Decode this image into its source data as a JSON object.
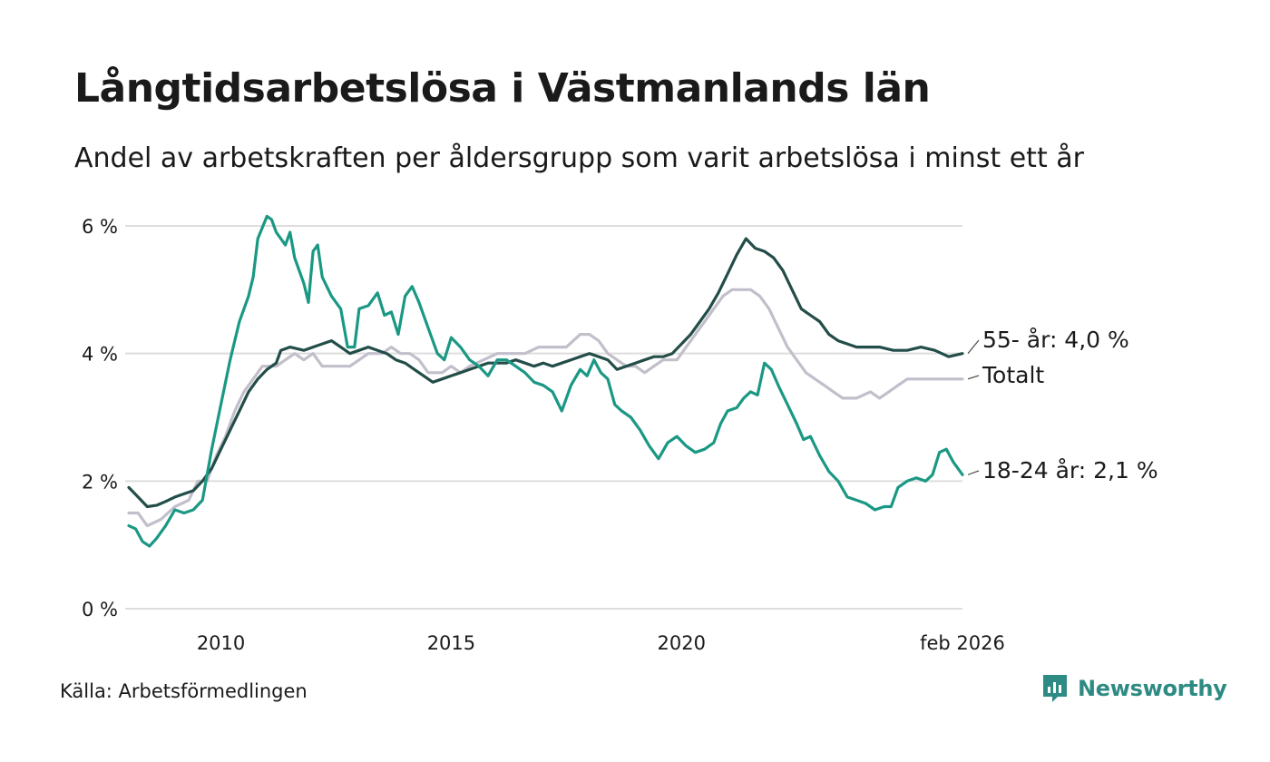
{
  "header": {
    "title": "Långtidsarbetslösa i Västmanlands län",
    "subtitle": "Andel av arbetskraften per åldersgrupp som varit arbetslösa i minst ett år"
  },
  "footer": {
    "source": "Källa: Arbetsförmedlingen",
    "brand": "Newsworthy"
  },
  "colors": {
    "age55": "#234d48",
    "total": "#c2bfcb",
    "age18_24": "#1a9884",
    "grid": "#dddddd",
    "brand": "#2e8b83"
  },
  "chart_data": {
    "type": "line",
    "title": "Långtidsarbetslösa i Västmanlands län",
    "subtitle": "Andel av arbetskraften per åldersgrupp som varit arbetslösa i minst ett år",
    "x_unit": "year",
    "xlim": [
      2008.0,
      2026.1
    ],
    "ylim": [
      0,
      6
    ],
    "y_ticks": [
      {
        "value": 0,
        "label": "0 %"
      },
      {
        "value": 2,
        "label": "2 %"
      },
      {
        "value": 4,
        "label": "4 %"
      },
      {
        "value": 6,
        "label": "6 %"
      }
    ],
    "x_ticks": [
      {
        "value": 2010,
        "label": "2010"
      },
      {
        "value": 2015,
        "label": "2015"
      },
      {
        "value": 2020,
        "label": "2020"
      },
      {
        "value": 2026.1,
        "label": "feb 2026"
      }
    ],
    "grid": true,
    "series": [
      {
        "name": "Totalt",
        "end_label": "Totalt",
        "color_key": "total",
        "points": [
          [
            2008.0,
            1.5
          ],
          [
            2008.2,
            1.5
          ],
          [
            2008.4,
            1.3
          ],
          [
            2008.7,
            1.4
          ],
          [
            2009.0,
            1.6
          ],
          [
            2009.3,
            1.7
          ],
          [
            2009.5,
            2.0
          ],
          [
            2009.7,
            2.0
          ],
          [
            2009.9,
            2.4
          ],
          [
            2010.1,
            2.7
          ],
          [
            2010.3,
            3.1
          ],
          [
            2010.5,
            3.4
          ],
          [
            2010.7,
            3.6
          ],
          [
            2010.9,
            3.8
          ],
          [
            2011.2,
            3.8
          ],
          [
            2011.4,
            3.9
          ],
          [
            2011.6,
            4.0
          ],
          [
            2011.8,
            3.9
          ],
          [
            2012.0,
            4.0
          ],
          [
            2012.2,
            3.8
          ],
          [
            2012.5,
            3.8
          ],
          [
            2012.8,
            3.8
          ],
          [
            2013.0,
            3.9
          ],
          [
            2013.2,
            4.0
          ],
          [
            2013.5,
            4.0
          ],
          [
            2013.7,
            4.1
          ],
          [
            2013.9,
            4.0
          ],
          [
            2014.1,
            4.0
          ],
          [
            2014.3,
            3.9
          ],
          [
            2014.5,
            3.7
          ],
          [
            2014.8,
            3.7
          ],
          [
            2015.0,
            3.8
          ],
          [
            2015.2,
            3.7
          ],
          [
            2015.4,
            3.8
          ],
          [
            2015.7,
            3.9
          ],
          [
            2016.0,
            4.0
          ],
          [
            2016.3,
            4.0
          ],
          [
            2016.6,
            4.0
          ],
          [
            2016.9,
            4.1
          ],
          [
            2017.2,
            4.1
          ],
          [
            2017.5,
            4.1
          ],
          [
            2017.8,
            4.3
          ],
          [
            2018.0,
            4.3
          ],
          [
            2018.2,
            4.2
          ],
          [
            2018.4,
            4.0
          ],
          [
            2018.6,
            3.9
          ],
          [
            2018.8,
            3.8
          ],
          [
            2019.0,
            3.8
          ],
          [
            2019.2,
            3.7
          ],
          [
            2019.4,
            3.8
          ],
          [
            2019.6,
            3.9
          ],
          [
            2019.9,
            3.9
          ],
          [
            2020.1,
            4.1
          ],
          [
            2020.3,
            4.3
          ],
          [
            2020.5,
            4.5
          ],
          [
            2020.7,
            4.7
          ],
          [
            2020.9,
            4.9
          ],
          [
            2021.1,
            5.0
          ],
          [
            2021.3,
            5.0
          ],
          [
            2021.5,
            5.0
          ],
          [
            2021.7,
            4.9
          ],
          [
            2021.9,
            4.7
          ],
          [
            2022.1,
            4.4
          ],
          [
            2022.3,
            4.1
          ],
          [
            2022.5,
            3.9
          ],
          [
            2022.7,
            3.7
          ],
          [
            2022.9,
            3.6
          ],
          [
            2023.1,
            3.5
          ],
          [
            2023.3,
            3.4
          ],
          [
            2023.5,
            3.3
          ],
          [
            2023.8,
            3.3
          ],
          [
            2024.1,
            3.4
          ],
          [
            2024.3,
            3.3
          ],
          [
            2024.5,
            3.4
          ],
          [
            2024.7,
            3.5
          ],
          [
            2024.9,
            3.6
          ],
          [
            2025.2,
            3.6
          ],
          [
            2025.5,
            3.6
          ],
          [
            2025.8,
            3.6
          ],
          [
            2026.1,
            3.6
          ]
        ]
      },
      {
        "name": "55- år",
        "end_label": "55- år: 4,0 %",
        "color_key": "age55",
        "points": [
          [
            2008.0,
            1.9
          ],
          [
            2008.2,
            1.75
          ],
          [
            2008.4,
            1.6
          ],
          [
            2008.6,
            1.62
          ],
          [
            2008.8,
            1.68
          ],
          [
            2009.0,
            1.75
          ],
          [
            2009.2,
            1.8
          ],
          [
            2009.4,
            1.85
          ],
          [
            2009.6,
            2.0
          ],
          [
            2009.8,
            2.2
          ],
          [
            2010.0,
            2.5
          ],
          [
            2010.2,
            2.8
          ],
          [
            2010.4,
            3.1
          ],
          [
            2010.6,
            3.4
          ],
          [
            2010.8,
            3.6
          ],
          [
            2011.0,
            3.75
          ],
          [
            2011.2,
            3.85
          ],
          [
            2011.3,
            4.05
          ],
          [
            2011.5,
            4.1
          ],
          [
            2011.8,
            4.05
          ],
          [
            2012.0,
            4.1
          ],
          [
            2012.2,
            4.15
          ],
          [
            2012.4,
            4.2
          ],
          [
            2012.6,
            4.1
          ],
          [
            2012.8,
            4.0
          ],
          [
            2013.0,
            4.05
          ],
          [
            2013.2,
            4.1
          ],
          [
            2013.4,
            4.05
          ],
          [
            2013.6,
            4.0
          ],
          [
            2013.8,
            3.9
          ],
          [
            2014.0,
            3.85
          ],
          [
            2014.2,
            3.75
          ],
          [
            2014.4,
            3.65
          ],
          [
            2014.6,
            3.55
          ],
          [
            2014.8,
            3.6
          ],
          [
            2015.0,
            3.65
          ],
          [
            2015.2,
            3.7
          ],
          [
            2015.4,
            3.75
          ],
          [
            2015.6,
            3.8
          ],
          [
            2015.8,
            3.85
          ],
          [
            2016.0,
            3.85
          ],
          [
            2016.2,
            3.85
          ],
          [
            2016.4,
            3.9
          ],
          [
            2016.6,
            3.85
          ],
          [
            2016.8,
            3.8
          ],
          [
            2017.0,
            3.85
          ],
          [
            2017.2,
            3.8
          ],
          [
            2017.4,
            3.85
          ],
          [
            2017.6,
            3.9
          ],
          [
            2017.8,
            3.95
          ],
          [
            2018.0,
            4.0
          ],
          [
            2018.2,
            3.95
          ],
          [
            2018.4,
            3.9
          ],
          [
            2018.6,
            3.75
          ],
          [
            2018.8,
            3.8
          ],
          [
            2019.0,
            3.85
          ],
          [
            2019.2,
            3.9
          ],
          [
            2019.4,
            3.95
          ],
          [
            2019.6,
            3.95
          ],
          [
            2019.8,
            4.0
          ],
          [
            2020.0,
            4.15
          ],
          [
            2020.2,
            4.3
          ],
          [
            2020.4,
            4.5
          ],
          [
            2020.6,
            4.7
          ],
          [
            2020.8,
            4.95
          ],
          [
            2021.0,
            5.25
          ],
          [
            2021.2,
            5.55
          ],
          [
            2021.4,
            5.8
          ],
          [
            2021.6,
            5.65
          ],
          [
            2021.8,
            5.6
          ],
          [
            2022.0,
            5.5
          ],
          [
            2022.2,
            5.3
          ],
          [
            2022.4,
            5.0
          ],
          [
            2022.6,
            4.7
          ],
          [
            2022.8,
            4.6
          ],
          [
            2023.0,
            4.5
          ],
          [
            2023.2,
            4.3
          ],
          [
            2023.4,
            4.2
          ],
          [
            2023.6,
            4.15
          ],
          [
            2023.8,
            4.1
          ],
          [
            2024.0,
            4.1
          ],
          [
            2024.3,
            4.1
          ],
          [
            2024.6,
            4.05
          ],
          [
            2024.9,
            4.05
          ],
          [
            2025.2,
            4.1
          ],
          [
            2025.5,
            4.05
          ],
          [
            2025.8,
            3.95
          ],
          [
            2026.1,
            4.0
          ]
        ]
      },
      {
        "name": "18-24 år",
        "end_label": "18-24 år: 2,1 %",
        "color_key": "age18_24",
        "points": [
          [
            2008.0,
            1.3
          ],
          [
            2008.15,
            1.25
          ],
          [
            2008.3,
            1.05
          ],
          [
            2008.45,
            0.98
          ],
          [
            2008.6,
            1.1
          ],
          [
            2008.8,
            1.3
          ],
          [
            2009.0,
            1.55
          ],
          [
            2009.2,
            1.5
          ],
          [
            2009.4,
            1.55
          ],
          [
            2009.6,
            1.7
          ],
          [
            2009.8,
            2.5
          ],
          [
            2010.0,
            3.2
          ],
          [
            2010.2,
            3.9
          ],
          [
            2010.4,
            4.5
          ],
          [
            2010.6,
            4.9
          ],
          [
            2010.7,
            5.2
          ],
          [
            2010.8,
            5.8
          ],
          [
            2011.0,
            6.15
          ],
          [
            2011.1,
            6.1
          ],
          [
            2011.2,
            5.9
          ],
          [
            2011.4,
            5.7
          ],
          [
            2011.5,
            5.9
          ],
          [
            2011.6,
            5.5
          ],
          [
            2011.8,
            5.1
          ],
          [
            2011.9,
            4.8
          ],
          [
            2012.0,
            5.6
          ],
          [
            2012.1,
            5.7
          ],
          [
            2012.2,
            5.2
          ],
          [
            2012.4,
            4.9
          ],
          [
            2012.6,
            4.7
          ],
          [
            2012.75,
            4.1
          ],
          [
            2012.9,
            4.1
          ],
          [
            2013.0,
            4.7
          ],
          [
            2013.2,
            4.75
          ],
          [
            2013.4,
            4.95
          ],
          [
            2013.55,
            4.6
          ],
          [
            2013.7,
            4.65
          ],
          [
            2013.85,
            4.3
          ],
          [
            2014.0,
            4.9
          ],
          [
            2014.15,
            5.05
          ],
          [
            2014.3,
            4.8
          ],
          [
            2014.5,
            4.4
          ],
          [
            2014.7,
            4.0
          ],
          [
            2014.85,
            3.9
          ],
          [
            2015.0,
            4.25
          ],
          [
            2015.2,
            4.1
          ],
          [
            2015.4,
            3.9
          ],
          [
            2015.6,
            3.8
          ],
          [
            2015.8,
            3.65
          ],
          [
            2016.0,
            3.9
          ],
          [
            2016.2,
            3.9
          ],
          [
            2016.4,
            3.8
          ],
          [
            2016.6,
            3.7
          ],
          [
            2016.8,
            3.55
          ],
          [
            2017.0,
            3.5
          ],
          [
            2017.2,
            3.4
          ],
          [
            2017.4,
            3.1
          ],
          [
            2017.6,
            3.5
          ],
          [
            2017.8,
            3.75
          ],
          [
            2017.95,
            3.65
          ],
          [
            2018.1,
            3.9
          ],
          [
            2018.25,
            3.7
          ],
          [
            2018.4,
            3.6
          ],
          [
            2018.55,
            3.2
          ],
          [
            2018.7,
            3.1
          ],
          [
            2018.9,
            3.0
          ],
          [
            2019.1,
            2.8
          ],
          [
            2019.3,
            2.55
          ],
          [
            2019.5,
            2.35
          ],
          [
            2019.7,
            2.6
          ],
          [
            2019.9,
            2.7
          ],
          [
            2020.1,
            2.55
          ],
          [
            2020.3,
            2.45
          ],
          [
            2020.5,
            2.5
          ],
          [
            2020.7,
            2.6
          ],
          [
            2020.85,
            2.9
          ],
          [
            2021.0,
            3.1
          ],
          [
            2021.2,
            3.15
          ],
          [
            2021.35,
            3.3
          ],
          [
            2021.5,
            3.4
          ],
          [
            2021.65,
            3.35
          ],
          [
            2021.8,
            3.85
          ],
          [
            2021.95,
            3.75
          ],
          [
            2022.1,
            3.5
          ],
          [
            2022.3,
            3.2
          ],
          [
            2022.5,
            2.9
          ],
          [
            2022.65,
            2.65
          ],
          [
            2022.8,
            2.7
          ],
          [
            2023.0,
            2.4
          ],
          [
            2023.2,
            2.15
          ],
          [
            2023.4,
            2.0
          ],
          [
            2023.6,
            1.75
          ],
          [
            2023.8,
            1.7
          ],
          [
            2024.0,
            1.65
          ],
          [
            2024.2,
            1.55
          ],
          [
            2024.4,
            1.6
          ],
          [
            2024.55,
            1.6
          ],
          [
            2024.7,
            1.9
          ],
          [
            2024.9,
            2.0
          ],
          [
            2025.1,
            2.05
          ],
          [
            2025.3,
            2.0
          ],
          [
            2025.45,
            2.1
          ],
          [
            2025.6,
            2.45
          ],
          [
            2025.75,
            2.5
          ],
          [
            2025.9,
            2.3
          ],
          [
            2026.0,
            2.2
          ],
          [
            2026.1,
            2.1
          ]
        ]
      }
    ]
  }
}
